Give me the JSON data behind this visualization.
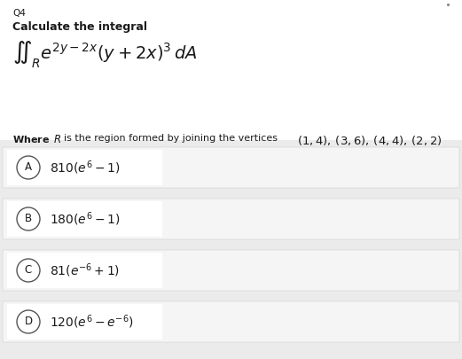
{
  "title_label": "Q4",
  "subtitle": "Calculate the integral",
  "integral_text": "$\\iint_R e^{2y-2x}(y+2x)^3\\,dA$",
  "where_line": "\\textbf{Where} $R$  is the region formed by joining the vertices",
  "vertices_text": "$(1,4),\\,(3,6),\\,(4,4),\\,(2,2)$",
  "options": [
    {
      "label": "A",
      "text": "$810(e^6-1)$"
    },
    {
      "label": "B",
      "text": "$180(e^6-1)$"
    },
    {
      "label": "C",
      "text": "$81(e^{-6}+1)$"
    },
    {
      "label": "D",
      "text": "$120(e^6-e^{-6})$"
    }
  ],
  "bg_color": "#ebebeb",
  "header_bg": "#ffffff",
  "option_box_color": "#f5f5f5",
  "option_border_color": "#d0d0d0",
  "text_color": "#1a1a1a",
  "dot_color": "#888888",
  "figwidth": 5.21,
  "figheight": 4.05,
  "dpi": 100
}
